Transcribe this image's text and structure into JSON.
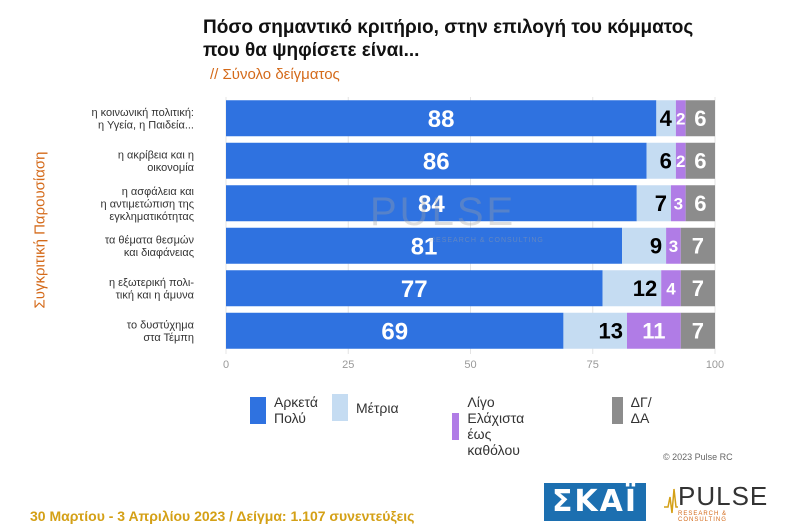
{
  "header": {
    "title_line1": "Πόσο σημαντικό κριτήριο, στην επιλογή του κόμματος",
    "title_line2": "που θα ψηφίσετε είναι...",
    "subtitle": "// Σύνολο δείγματος"
  },
  "side_label": "Συγκριτική Παρουσίαση",
  "watermark": {
    "main": "PULSE",
    "sub": "RESEARCH & CONSULTING"
  },
  "chart_data": {
    "type": "bar",
    "orientation": "horizontal",
    "stacked": true,
    "categories": [
      [
        "η κοινωνική πολιτική:",
        "η Υγεία, η Παιδεία..."
      ],
      [
        "η ακρίβεια και η",
        "οικονομία"
      ],
      [
        "η ασφάλεια και",
        "η αντιμετώπιση της",
        "εγκληματικότητας"
      ],
      [
        "τα θέματα θεσμών",
        "και διαφάνειας"
      ],
      [
        "η εξωτερική πολι-",
        "τική και η άμυνα"
      ],
      [
        "το δυστύχημα",
        "στα Τέμπη"
      ]
    ],
    "series": [
      {
        "name": "Αρκετά\nΠολύ",
        "color": "#2f72e0",
        "values": [
          88,
          86,
          84,
          81,
          77,
          69
        ]
      },
      {
        "name": "Μέτρια",
        "color": "#c5dcf2",
        "values": [
          4,
          6,
          7,
          9,
          12,
          13
        ]
      },
      {
        "name": "Λίγο\nΕλάχιστα έως καθόλου",
        "color": "#b07ce6",
        "values": [
          2,
          2,
          3,
          3,
          4,
          11
        ]
      },
      {
        "name": "ΔΓ/ΔΑ",
        "color": "#8c8c8c",
        "values": [
          6,
          6,
          6,
          7,
          7,
          7
        ]
      }
    ],
    "xlim": [
      0,
      100
    ],
    "xticks": [
      0,
      25,
      50,
      75,
      100
    ],
    "grid": true,
    "legend": "bottom"
  },
  "copyright": "© 2023 Pulse RC",
  "footer": "30 Μαρτίου - 3  Απριλίου  2023  /  Δείγμα:  1.107 συνεντεύξεις",
  "logos": {
    "skai": "ΣΚΑΪ",
    "pulse": "PULSE",
    "pulse_sub": "RESEARCH & CONSULTING"
  }
}
